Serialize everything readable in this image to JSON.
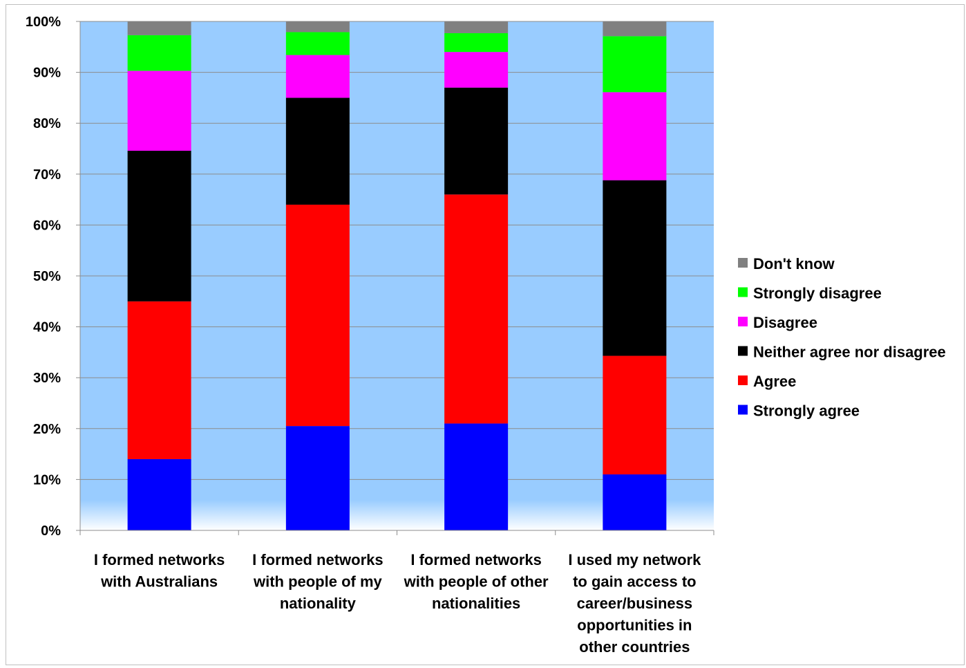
{
  "chart_data": {
    "type": "bar",
    "stacked": true,
    "percent": true,
    "title": "",
    "xlabel": "",
    "ylabel": "",
    "ylim": [
      0,
      100
    ],
    "yticks": [
      "0%",
      "10%",
      "20%",
      "30%",
      "40%",
      "50%",
      "60%",
      "70%",
      "80%",
      "90%",
      "100%"
    ],
    "grid": true,
    "legend_position": "right",
    "plot_background": "#99ccff",
    "categories": [
      [
        "I formed networks",
        "with Australians"
      ],
      [
        "I formed networks",
        "with people of my",
        "nationality"
      ],
      [
        "I formed networks",
        "with people of other",
        "nationalities"
      ],
      [
        "I used my network",
        "to gain access to",
        "career/business",
        "opportunities in",
        "other countries"
      ]
    ],
    "series": [
      {
        "name": "Strongly agree",
        "color": "#0000ff",
        "values": [
          14,
          20.5,
          21,
          11
        ]
      },
      {
        "name": "Agree",
        "color": "#ff0000",
        "values": [
          31,
          43.5,
          45,
          23.3
        ]
      },
      {
        "name": "Neither agree nor disagree",
        "color": "#000000",
        "values": [
          29.6,
          21,
          21,
          34.5
        ]
      },
      {
        "name": "Disagree",
        "color": "#ff00ff",
        "values": [
          15.7,
          8.4,
          7,
          17.3
        ]
      },
      {
        "name": "Strongly disagree",
        "color": "#00ff00",
        "values": [
          7,
          4.5,
          3.7,
          11
        ]
      },
      {
        "name": "Don't know",
        "color": "#808080",
        "values": [
          2.7,
          2.1,
          2.3,
          2.9
        ]
      }
    ]
  }
}
